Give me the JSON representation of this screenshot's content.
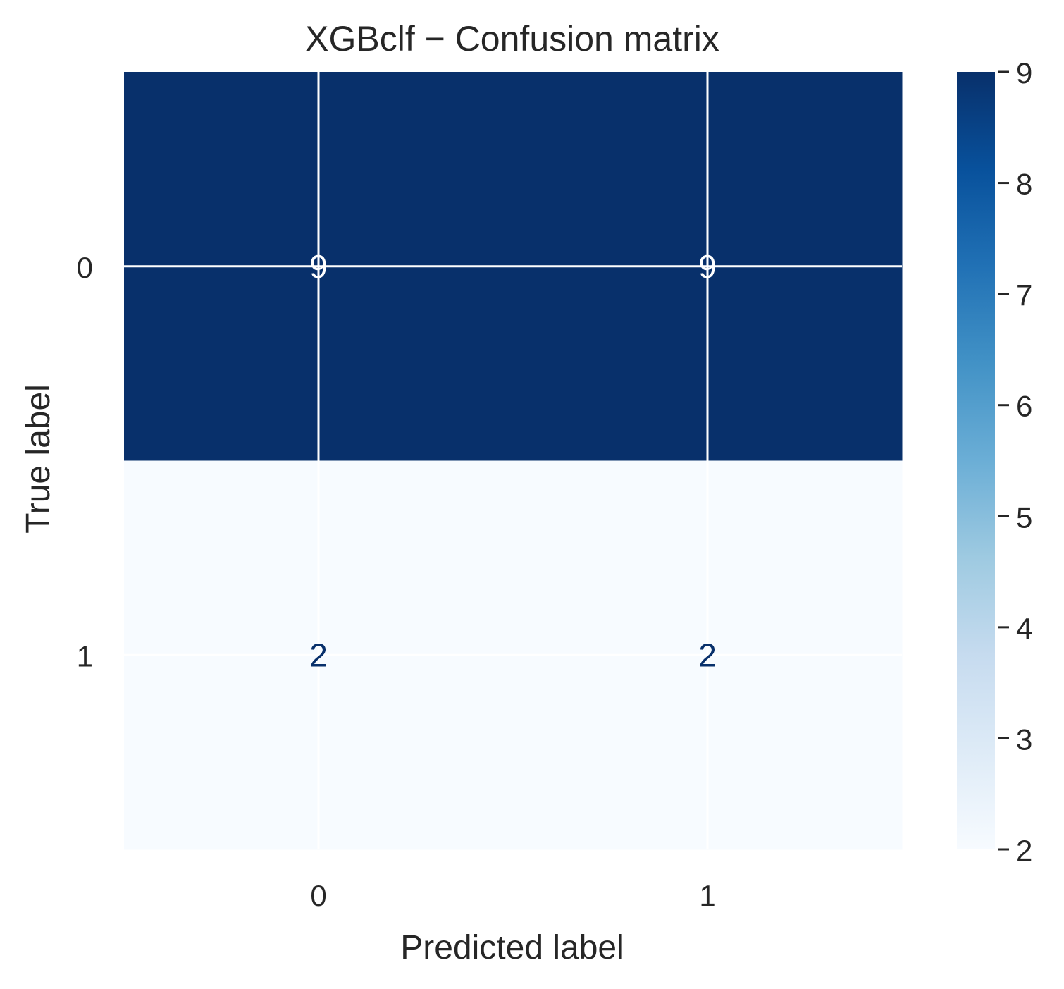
{
  "chart_data": {
    "type": "heatmap",
    "title": "XGBclf  −  Confusion matrix",
    "xlabel": "Predicted label",
    "ylabel": "True label",
    "x_categories": [
      "0",
      "1"
    ],
    "y_categories": [
      "0",
      "1"
    ],
    "values": [
      [
        9,
        9
      ],
      [
        2,
        2
      ]
    ],
    "colormap": "Blues",
    "colorbar": {
      "min": 2,
      "max": 9,
      "ticks": [
        2,
        3,
        4,
        5,
        6,
        7,
        8,
        9
      ]
    },
    "grid": true,
    "colors": {
      "high": "#08306b",
      "low": "#f7fbff",
      "text_on_dark": "#ffffff",
      "text_on_light": "#08306b",
      "text": "#262626"
    }
  }
}
